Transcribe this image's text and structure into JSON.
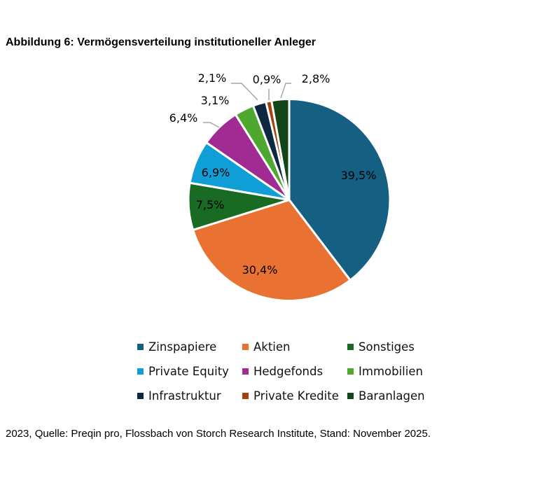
{
  "chart_data": {
    "type": "pie",
    "title": "Abbildung 6: Vermögensverteilung institutioneller Anleger",
    "categories": [
      "Zinspapiere",
      "Aktien",
      "Sonstiges",
      "Private Equity",
      "Hedgefonds",
      "Immobilien",
      "Infrastruktur",
      "Private Kredite",
      "Baranlagen"
    ],
    "values": [
      39.5,
      30.4,
      7.5,
      6.9,
      6.4,
      3.1,
      2.1,
      0.9,
      2.8
    ],
    "data_labels": [
      "39,5%",
      "30,4%",
      "7,5%",
      "6,9%",
      "6,4%",
      "3,1%",
      "2,1%",
      "0,9%",
      "2,8%"
    ],
    "colors": [
      "#156082",
      "#E97132",
      "#196B24",
      "#0F9ED5",
      "#A02B93",
      "#4EA72E",
      "#0E2841",
      "#A5410E",
      "#12451A"
    ],
    "start": "12 o'clock, clockwise",
    "legend_placement": "bottom"
  },
  "footnote": "2023, Quelle: Preqin pro, Flossbach von Storch Research Institute, Stand: November 2025."
}
